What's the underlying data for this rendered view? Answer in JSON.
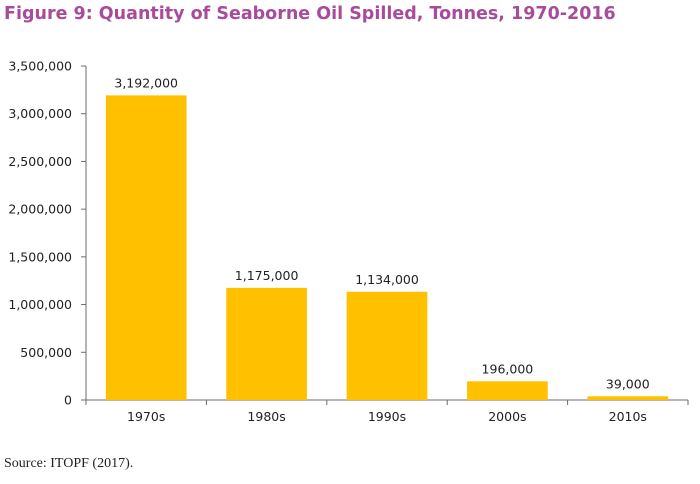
{
  "figure": {
    "title": "Figure 9: Quantity of Seaborne Oil Spilled, Tonnes, 1970-2016",
    "source": "Source: ITOPF (2017)."
  },
  "colors": {
    "title": "#a94b9b",
    "bar": "#ffc000",
    "axis": "#6b6b6b",
    "text": "#222222"
  },
  "chart_data": {
    "type": "bar",
    "title": "Figure 9: Quantity of Seaborne Oil Spilled, Tonnes, 1970-2016",
    "xlabel": "",
    "ylabel": "",
    "categories": [
      "1970s",
      "1980s",
      "1990s",
      "2000s",
      "2010s"
    ],
    "values": [
      3192000,
      1175000,
      1134000,
      196000,
      39000
    ],
    "value_labels": [
      "3,192,000",
      "1,175,000",
      "1,134,000",
      "196,000",
      "39,000"
    ],
    "ylim": [
      0,
      3500000
    ],
    "yticks": [
      0,
      500000,
      1000000,
      1500000,
      2000000,
      2500000,
      3000000,
      3500000
    ],
    "ytick_labels": [
      "0",
      "500,000",
      "1,000,000",
      "1,500,000",
      "2,000,000",
      "2,500,000",
      "3,000,000",
      "3,500,000"
    ],
    "grid": false,
    "legend": "none"
  }
}
